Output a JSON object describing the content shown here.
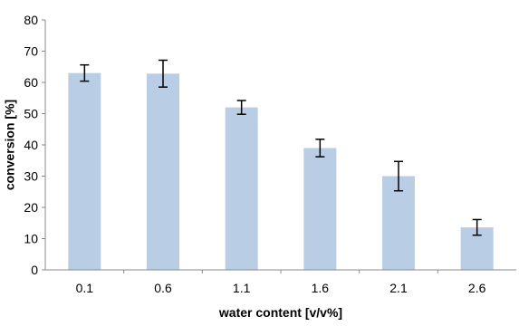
{
  "chart_data": {
    "type": "bar",
    "title": "",
    "xlabel": "water content [v/v%]",
    "ylabel": "conversion [%]",
    "categories": [
      "0.1",
      "0.6",
      "1.1",
      "1.6",
      "2.1",
      "2.6"
    ],
    "values": [
      63,
      62.8,
      52,
      39,
      30,
      13.6
    ],
    "errors": [
      2.6,
      4.3,
      2.2,
      2.8,
      4.7,
      2.5
    ],
    "ylim": [
      0,
      80
    ],
    "yticks": [
      0,
      10,
      20,
      30,
      40,
      50,
      60,
      70,
      80
    ],
    "grid": false,
    "legend": "none",
    "bar_color": "#b9cde5",
    "error_color": "#000000",
    "axis_color": "#888888"
  }
}
